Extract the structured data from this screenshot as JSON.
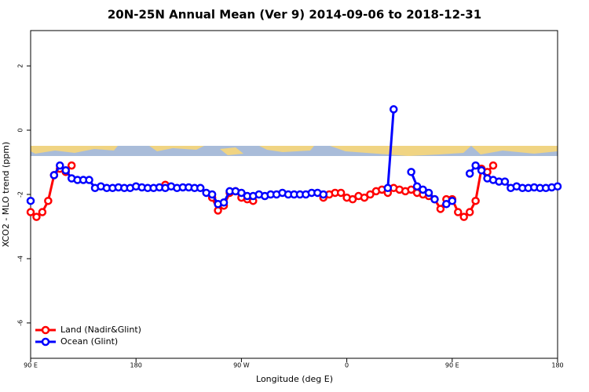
{
  "chart_data": {
    "type": "line",
    "title": "20N-25N Annual Mean (Ver 9)   2014-09-06 to 2018-12-31",
    "x_label": "Longitude (deg E)",
    "y_label": "XCO2 - MLO trend (ppm)",
    "xlim": [
      90,
      540
    ],
    "ylim": [
      -7.1,
      3.1
    ],
    "xticks": [
      {
        "value": 90,
        "label": "90 E"
      },
      180,
      {
        "value": 270,
        "label": "90 W"
      },
      {
        "value": 360,
        "label": "0"
      },
      {
        "value": 450,
        "label": "90 E"
      },
      {
        "value": 540,
        "label": "180"
      }
    ],
    "yticks": [
      -6,
      -4,
      -2,
      0,
      2
    ],
    "legend": "bottom-left",
    "x": [
      90,
      95,
      100,
      105,
      110,
      115,
      120,
      125,
      130,
      135,
      140,
      145,
      150,
      155,
      160,
      165,
      170,
      175,
      180,
      185,
      190,
      195,
      200,
      205,
      210,
      215,
      220,
      225,
      230,
      235,
      240,
      245,
      250,
      255,
      260,
      265,
      270,
      275,
      280,
      285,
      290,
      295,
      300,
      305,
      310,
      315,
      320,
      325,
      330,
      335,
      340,
      345,
      350,
      355,
      360,
      365,
      370,
      375,
      380,
      385,
      390,
      395,
      400,
      405,
      410,
      415,
      420,
      425,
      430,
      435,
      440,
      445,
      450,
      455,
      460,
      465,
      470,
      475,
      480,
      485,
      490,
      495,
      500,
      505,
      510,
      515,
      520,
      525,
      530,
      535,
      540
    ],
    "series": [
      {
        "name": "Land (Nadir&Glint)",
        "color": "#ff0000",
        "values": [
          -2.55,
          -2.7,
          -2.55,
          -2.2,
          -1.4,
          -1.2,
          -1.3,
          -1.1,
          null,
          null,
          null,
          null,
          null,
          null,
          null,
          null,
          null,
          null,
          null,
          null,
          null,
          null,
          null,
          -1.7,
          null,
          null,
          null,
          null,
          null,
          null,
          null,
          -2.1,
          -2.5,
          -2.35,
          -1.95,
          -1.9,
          -2.1,
          -2.15,
          -2.2,
          null,
          null,
          null,
          null,
          null,
          null,
          null,
          null,
          null,
          null,
          null,
          -2.1,
          -2.0,
          -1.95,
          -1.95,
          -2.1,
          -2.15,
          -2.05,
          -2.1,
          -2.0,
          -1.9,
          -1.85,
          -1.95,
          -1.8,
          -1.85,
          -1.9,
          -1.85,
          -1.95,
          -2.0,
          -2.05,
          -2.15,
          -2.45,
          -2.15,
          -2.15,
          -2.55,
          -2.7,
          -2.55,
          -2.2,
          -1.2,
          -1.3,
          -1.1,
          null,
          null,
          null,
          null,
          null,
          null,
          null,
          null,
          null,
          null,
          null
        ]
      },
      {
        "name": "Ocean (Glint)",
        "color": "#0000ff",
        "values": [
          -2.2,
          null,
          null,
          null,
          -1.4,
          -1.1,
          -1.25,
          -1.5,
          -1.55,
          -1.55,
          -1.55,
          -1.8,
          -1.75,
          -1.8,
          -1.8,
          -1.78,
          -1.8,
          -1.8,
          -1.75,
          -1.78,
          -1.8,
          -1.8,
          -1.78,
          -1.8,
          -1.75,
          -1.8,
          -1.78,
          -1.78,
          -1.8,
          -1.8,
          -1.95,
          -2.0,
          -2.3,
          -2.25,
          -1.9,
          -1.9,
          -1.95,
          -2.05,
          -2.05,
          -2.0,
          -2.05,
          -2.0,
          -2.0,
          -1.95,
          -2.0,
          -2.0,
          -2.0,
          -2.0,
          -1.95,
          -1.95,
          -2.0,
          null,
          null,
          null,
          null,
          null,
          null,
          null,
          null,
          null,
          null,
          -1.8,
          0.65,
          null,
          null,
          -1.3,
          -1.75,
          -1.85,
          -1.95,
          -2.15,
          null,
          -2.3,
          -2.2,
          null,
          null,
          -1.35,
          -1.1,
          -1.25,
          -1.5,
          -1.55,
          -1.6,
          -1.6,
          -1.8,
          -1.75,
          -1.8,
          -1.8,
          -1.78,
          -1.8,
          -1.8,
          -1.78,
          -1.75
        ]
      }
    ]
  }
}
